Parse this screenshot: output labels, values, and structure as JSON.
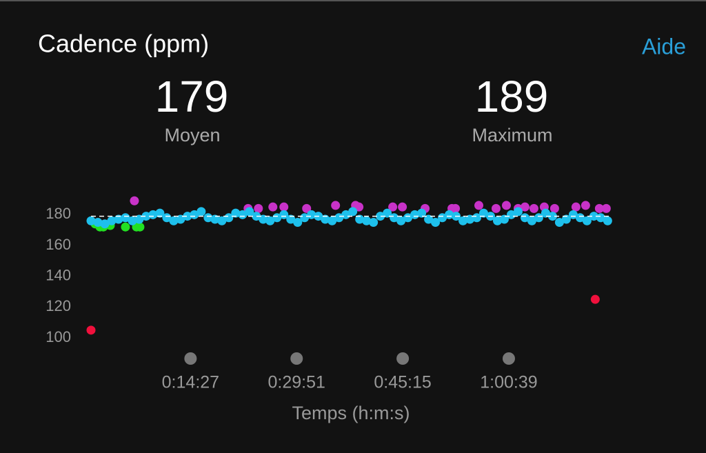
{
  "chart_data": {
    "type": "scatter",
    "title": "Cadence (ppm)",
    "help": "Aide",
    "stats": [
      {
        "value": 179,
        "label": "Moyen"
      },
      {
        "value": 189,
        "label": "Maximum"
      }
    ],
    "xlabel": "Temps (h:m:s)",
    "xlim": [
      0,
      4600
    ],
    "ylim": [
      100,
      190
    ],
    "xticks": [
      {
        "value": 867,
        "label": "0:14:27"
      },
      {
        "value": 1791,
        "label": "0:29:51"
      },
      {
        "value": 2715,
        "label": "0:45:15"
      },
      {
        "value": 3639,
        "label": "1:00:39"
      }
    ],
    "yticks": [
      100,
      120,
      140,
      160,
      180
    ],
    "series": [
      {
        "color": "#f0103c",
        "x": [
          0,
          4392
        ],
        "values": [
          105,
          125
        ]
      },
      {
        "color": "#22e022",
        "x": [
          36,
          78,
          108,
          168,
          300,
          396,
          426
        ],
        "values": [
          174,
          172,
          172,
          173,
          172,
          172,
          172
        ]
      },
      {
        "color": "#c832c8",
        "x": [
          378,
          1368,
          1458,
          1584,
          1680,
          1878,
          2130,
          2304,
          2334,
          2628,
          2712,
          2910,
          3144,
          3174,
          3378,
          3528,
          3618,
          3720,
          3780,
          3858,
          3948,
          4038,
          4224,
          4308,
          4428,
          4488
        ],
        "values": [
          189,
          184,
          184,
          185,
          185,
          184,
          186,
          186,
          185,
          185,
          185,
          184,
          184,
          184,
          186,
          184,
          186,
          184,
          185,
          184,
          185,
          184,
          185,
          186,
          184,
          184
        ]
      },
      {
        "color": "#1ec0ec",
        "x": [
          0,
          60,
          120,
          180,
          240,
          300,
          360,
          420,
          480,
          540,
          600,
          660,
          720,
          780,
          840,
          900,
          960,
          1020,
          1080,
          1140,
          1200,
          1260,
          1320,
          1380,
          1440,
          1500,
          1560,
          1620,
          1680,
          1740,
          1800,
          1860,
          1920,
          1980,
          2040,
          2100,
          2160,
          2220,
          2280,
          2340,
          2400,
          2460,
          2520,
          2580,
          2640,
          2700,
          2760,
          2820,
          2880,
          2940,
          3000,
          3060,
          3120,
          3180,
          3240,
          3300,
          3360,
          3420,
          3480,
          3540,
          3600,
          3660,
          3720,
          3780,
          3840,
          3900,
          3960,
          4020,
          4080,
          4140,
          4200,
          4260,
          4320,
          4380,
          4440,
          4500
        ],
        "values": [
          176,
          175,
          174,
          176,
          177,
          178,
          176,
          177,
          179,
          180,
          181,
          178,
          176,
          177,
          179,
          180,
          182,
          178,
          177,
          176,
          178,
          181,
          180,
          182,
          179,
          177,
          176,
          178,
          180,
          177,
          175,
          178,
          180,
          179,
          177,
          176,
          178,
          180,
          182,
          177,
          176,
          175,
          179,
          181,
          178,
          176,
          178,
          180,
          181,
          177,
          175,
          178,
          180,
          179,
          176,
          177,
          178,
          181,
          179,
          176,
          177,
          180,
          182,
          178,
          176,
          178,
          181,
          179,
          175,
          177,
          180,
          178,
          176,
          179,
          178,
          176
        ]
      }
    ]
  }
}
